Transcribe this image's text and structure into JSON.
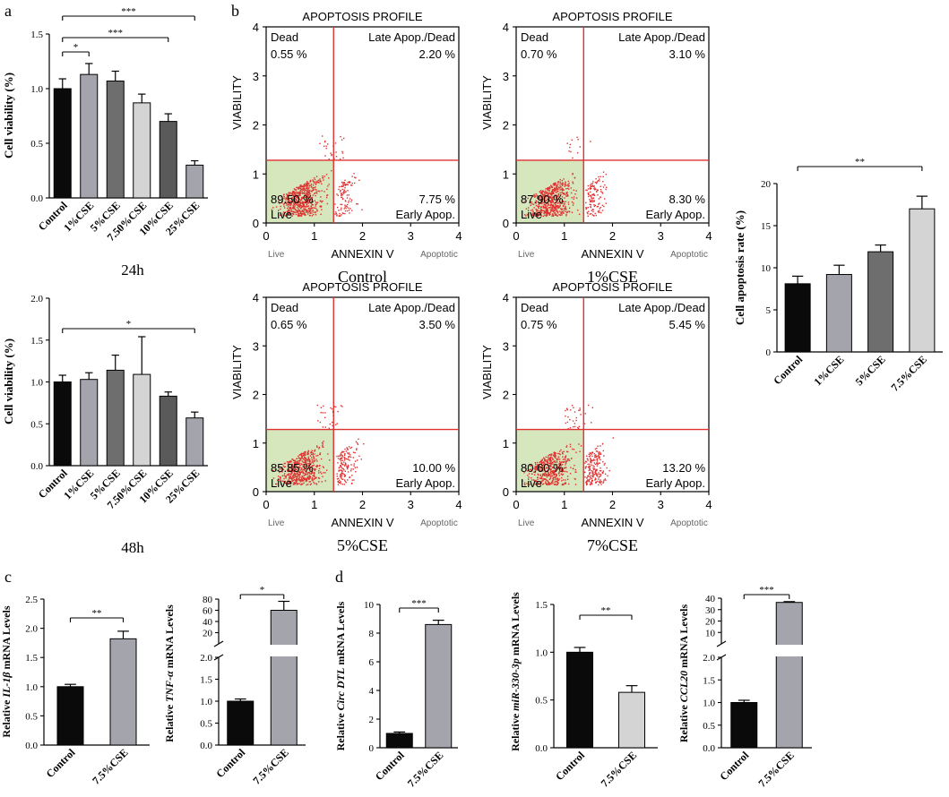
{
  "colors": {
    "black": "#0a0a0a",
    "light_gray": "#d4d4d4",
    "medium_gray": "#a4a4ad",
    "dark_gray": "#6e6e6e",
    "darker_gray": "#5a5a5a",
    "flow_red": "#e03030",
    "flow_green": "#d6e6bd"
  },
  "panel_labels": [
    "a",
    "b",
    "c",
    "d"
  ],
  "chart_data": [
    {
      "id": "a1",
      "type": "bar",
      "panel": "a",
      "categories": [
        "Control",
        "1%CSE",
        "5%CSE",
        "7.50%CSE",
        "10%CSE",
        "25%CSE"
      ],
      "values": [
        1.0,
        1.13,
        1.07,
        0.87,
        0.7,
        0.3
      ],
      "errors": [
        0.09,
        0.1,
        0.09,
        0.08,
        0.07,
        0.04
      ],
      "colors": [
        "black",
        "medium_gray",
        "dark_gray",
        "light_gray",
        "darker_gray",
        "medium_gray"
      ],
      "ylabel": "Cell viability (%)",
      "caption": "24h",
      "ylim": [
        0,
        1.5
      ],
      "yticks": [
        "0.0",
        "0.5",
        "1.0",
        "1.5"
      ],
      "ytick_values": [
        0,
        0.5,
        1.0,
        1.5
      ],
      "significance": [
        {
          "from": 0,
          "to": 1,
          "label": "*"
        },
        {
          "from": 0,
          "to": 4,
          "label": "***"
        },
        {
          "from": 0,
          "to": 5,
          "label": "***"
        }
      ]
    },
    {
      "id": "a2",
      "type": "bar",
      "panel": "a",
      "categories": [
        "Control",
        "1%CSE",
        "5%CSE",
        "7.50%CSE",
        "10%CSE",
        "25%CSE"
      ],
      "values": [
        1.0,
        1.03,
        1.14,
        1.09,
        0.83,
        0.57
      ],
      "errors": [
        0.08,
        0.08,
        0.18,
        0.45,
        0.05,
        0.07
      ],
      "colors": [
        "black",
        "medium_gray",
        "dark_gray",
        "light_gray",
        "darker_gray",
        "medium_gray"
      ],
      "ylabel": "Cell viability (%)",
      "caption": "48h",
      "ylim": [
        0,
        2.0
      ],
      "yticks": [
        "0.0",
        "0.5",
        "1.0",
        "1.5",
        "2.0"
      ],
      "ytick_values": [
        0,
        0.5,
        1.0,
        1.5,
        2.0
      ],
      "significance": [
        {
          "from": 0,
          "to": 5,
          "label": "*"
        }
      ]
    },
    {
      "id": "b_rate",
      "type": "bar",
      "panel": "b",
      "categories": [
        "Control",
        "1%CSE",
        "5%CSE",
        "7.5%CSE"
      ],
      "values": [
        8.1,
        9.2,
        11.9,
        17.0
      ],
      "errors": [
        0.9,
        1.1,
        0.8,
        1.5
      ],
      "colors": [
        "black",
        "medium_gray",
        "dark_gray",
        "light_gray"
      ],
      "ylabel": "Cell apoptosis rate (%)",
      "ylim": [
        0,
        20
      ],
      "yticks": [
        "0",
        "5",
        "10",
        "15",
        "20"
      ],
      "ytick_values": [
        0,
        5,
        10,
        15,
        20
      ],
      "significance": [
        {
          "from": 0,
          "to": 3,
          "label": "**"
        }
      ]
    },
    {
      "id": "c1",
      "type": "bar",
      "panel": "c",
      "categories": [
        "Control",
        "7.5%CSE"
      ],
      "values": [
        1.0,
        1.82
      ],
      "errors": [
        0.04,
        0.13
      ],
      "colors": [
        "black",
        "medium_gray"
      ],
      "ylabel_parts": [
        "Relative ",
        "IL-1β",
        " mRNA Levels"
      ],
      "ylim": [
        0,
        2.5
      ],
      "yticks": [
        "0.0",
        "0.5",
        "1.0",
        "1.5",
        "2.0",
        "2.5"
      ],
      "ytick_values": [
        0,
        0.5,
        1.0,
        1.5,
        2.0,
        2.5
      ],
      "significance": [
        {
          "from": 0,
          "to": 1,
          "label": "**"
        }
      ]
    },
    {
      "id": "c2",
      "type": "bar",
      "panel": "c",
      "broken_axis": true,
      "categories": [
        "Control",
        "7.5%CSE"
      ],
      "values": [
        1.0,
        60
      ],
      "errors": [
        0.05,
        16
      ],
      "colors": [
        "black",
        "medium_gray"
      ],
      "ylabel_parts": [
        "Relative ",
        "TNF-α",
        " mRNA Levels"
      ],
      "lower_ylim": [
        0,
        2.0
      ],
      "lower_yticks": [
        "0.0",
        "0.5",
        "1.0",
        "1.5",
        "2.0"
      ],
      "lower_ytick_values": [
        0,
        0.5,
        1.0,
        1.5,
        2.0
      ],
      "upper_ylim": [
        0,
        80
      ],
      "upper_yticks": [
        "20",
        "40",
        "60",
        "80"
      ],
      "upper_ytick_values": [
        20,
        40,
        60,
        80
      ],
      "significance": [
        {
          "from": 0,
          "to": 1,
          "label": "*"
        }
      ]
    },
    {
      "id": "d1",
      "type": "bar",
      "panel": "d",
      "categories": [
        "Control",
        "7.5%CSE"
      ],
      "values": [
        1.0,
        8.6
      ],
      "errors": [
        0.1,
        0.3
      ],
      "colors": [
        "black",
        "medium_gray"
      ],
      "ylabel_parts": [
        "Relative ",
        "Circ DTL",
        " mRNA Levels"
      ],
      "ylim": [
        0,
        10
      ],
      "yticks": [
        "0",
        "2",
        "4",
        "6",
        "8",
        "10"
      ],
      "ytick_values": [
        0,
        2,
        4,
        6,
        8,
        10
      ],
      "significance": [
        {
          "from": 0,
          "to": 1,
          "label": "***"
        }
      ]
    },
    {
      "id": "d2",
      "type": "bar",
      "panel": "d",
      "categories": [
        "Control",
        "7.5%CSE"
      ],
      "values": [
        1.0,
        0.58
      ],
      "errors": [
        0.05,
        0.07
      ],
      "colors": [
        "black",
        "light_gray"
      ],
      "ylabel_parts": [
        "Relative ",
        "miR-330-3p",
        " mRNA Levels"
      ],
      "ylim": [
        0,
        1.5
      ],
      "yticks": [
        "0.0",
        "0.5",
        "1.0",
        "1.5"
      ],
      "ytick_values": [
        0,
        0.5,
        1.0,
        1.5
      ],
      "significance": [
        {
          "from": 0,
          "to": 1,
          "label": "**"
        }
      ]
    },
    {
      "id": "d3",
      "type": "bar",
      "panel": "d",
      "broken_axis": true,
      "categories": [
        "Control",
        "7.5%CSE"
      ],
      "values": [
        1.0,
        36.3
      ],
      "errors": [
        0.05,
        0.7
      ],
      "colors": [
        "black",
        "medium_gray"
      ],
      "ylabel_parts": [
        "Relative ",
        "CCL20",
        " mRNA Levels"
      ],
      "lower_ylim": [
        0,
        2.0
      ],
      "lower_yticks": [
        "0.0",
        "0.5",
        "1.0",
        "1.5",
        "2.0"
      ],
      "lower_ytick_values": [
        0,
        0.5,
        1.0,
        1.5,
        2.0
      ],
      "upper_ylim": [
        0,
        40
      ],
      "upper_yticks": [
        "10",
        "20",
        "30",
        "40"
      ],
      "upper_ytick_values": [
        10,
        20,
        30,
        40
      ],
      "significance": [
        {
          "from": 0,
          "to": 1,
          "label": "***"
        }
      ]
    },
    {
      "id": "flow_control",
      "type": "scatter",
      "panel": "b",
      "title": "APOPTOSIS PROFILE",
      "caption": "Control",
      "xlabel": "ANNEXIN V",
      "ylabel": "VIABILITY",
      "xlim": [
        0,
        4
      ],
      "ylim": [
        0,
        4
      ],
      "threshold_x": 1.4,
      "threshold_y": 1.28,
      "quadrants": {
        "dead": "0.55 %",
        "late": "2.20 %",
        "live": "89.50 %",
        "early": "7.75 %"
      }
    },
    {
      "id": "flow_1",
      "type": "scatter",
      "panel": "b",
      "title": "APOPTOSIS PROFILE",
      "caption": "1%CSE",
      "xlabel": "ANNEXIN V",
      "ylabel": "VIABILITY",
      "xlim": [
        0,
        4
      ],
      "ylim": [
        0,
        4
      ],
      "threshold_x": 1.4,
      "threshold_y": 1.28,
      "quadrants": {
        "dead": "0.70 %",
        "late": "3.10 %",
        "live": "87.90 %",
        "early": "8.30 %"
      }
    },
    {
      "id": "flow_5",
      "type": "scatter",
      "panel": "b",
      "title": "APOPTOSIS PROFILE",
      "caption": "5%CSE",
      "xlabel": "ANNEXIN V",
      "ylabel": "VIABILITY",
      "xlim": [
        0,
        4
      ],
      "ylim": [
        0,
        4
      ],
      "threshold_x": 1.4,
      "threshold_y": 1.28,
      "quadrants": {
        "dead": "0.65 %",
        "late": "3.50 %",
        "live": "85.85 %",
        "early": "10.00 %"
      }
    },
    {
      "id": "flow_7",
      "type": "scatter",
      "panel": "b",
      "title": "APOPTOSIS PROFILE",
      "caption": "7%CSE",
      "xlabel": "ANNEXIN V",
      "ylabel": "VIABILITY",
      "xlim": [
        0,
        4
      ],
      "ylim": [
        0,
        4
      ],
      "threshold_x": 1.4,
      "threshold_y": 1.28,
      "quadrants": {
        "dead": "0.75 %",
        "late": "5.45 %",
        "live": "80.60 %",
        "early": "13.20 %"
      }
    }
  ],
  "flow_labels": {
    "dead": "Dead",
    "late": "Late Apop./Dead",
    "live": "Live",
    "early": "Early Apop.",
    "x_live": "Live",
    "x_apoptotic": "Apoptotic",
    "ticks": [
      "0",
      "1",
      "2",
      "3",
      "4"
    ],
    "tick_values": [
      0,
      1,
      2,
      3,
      4
    ]
  }
}
